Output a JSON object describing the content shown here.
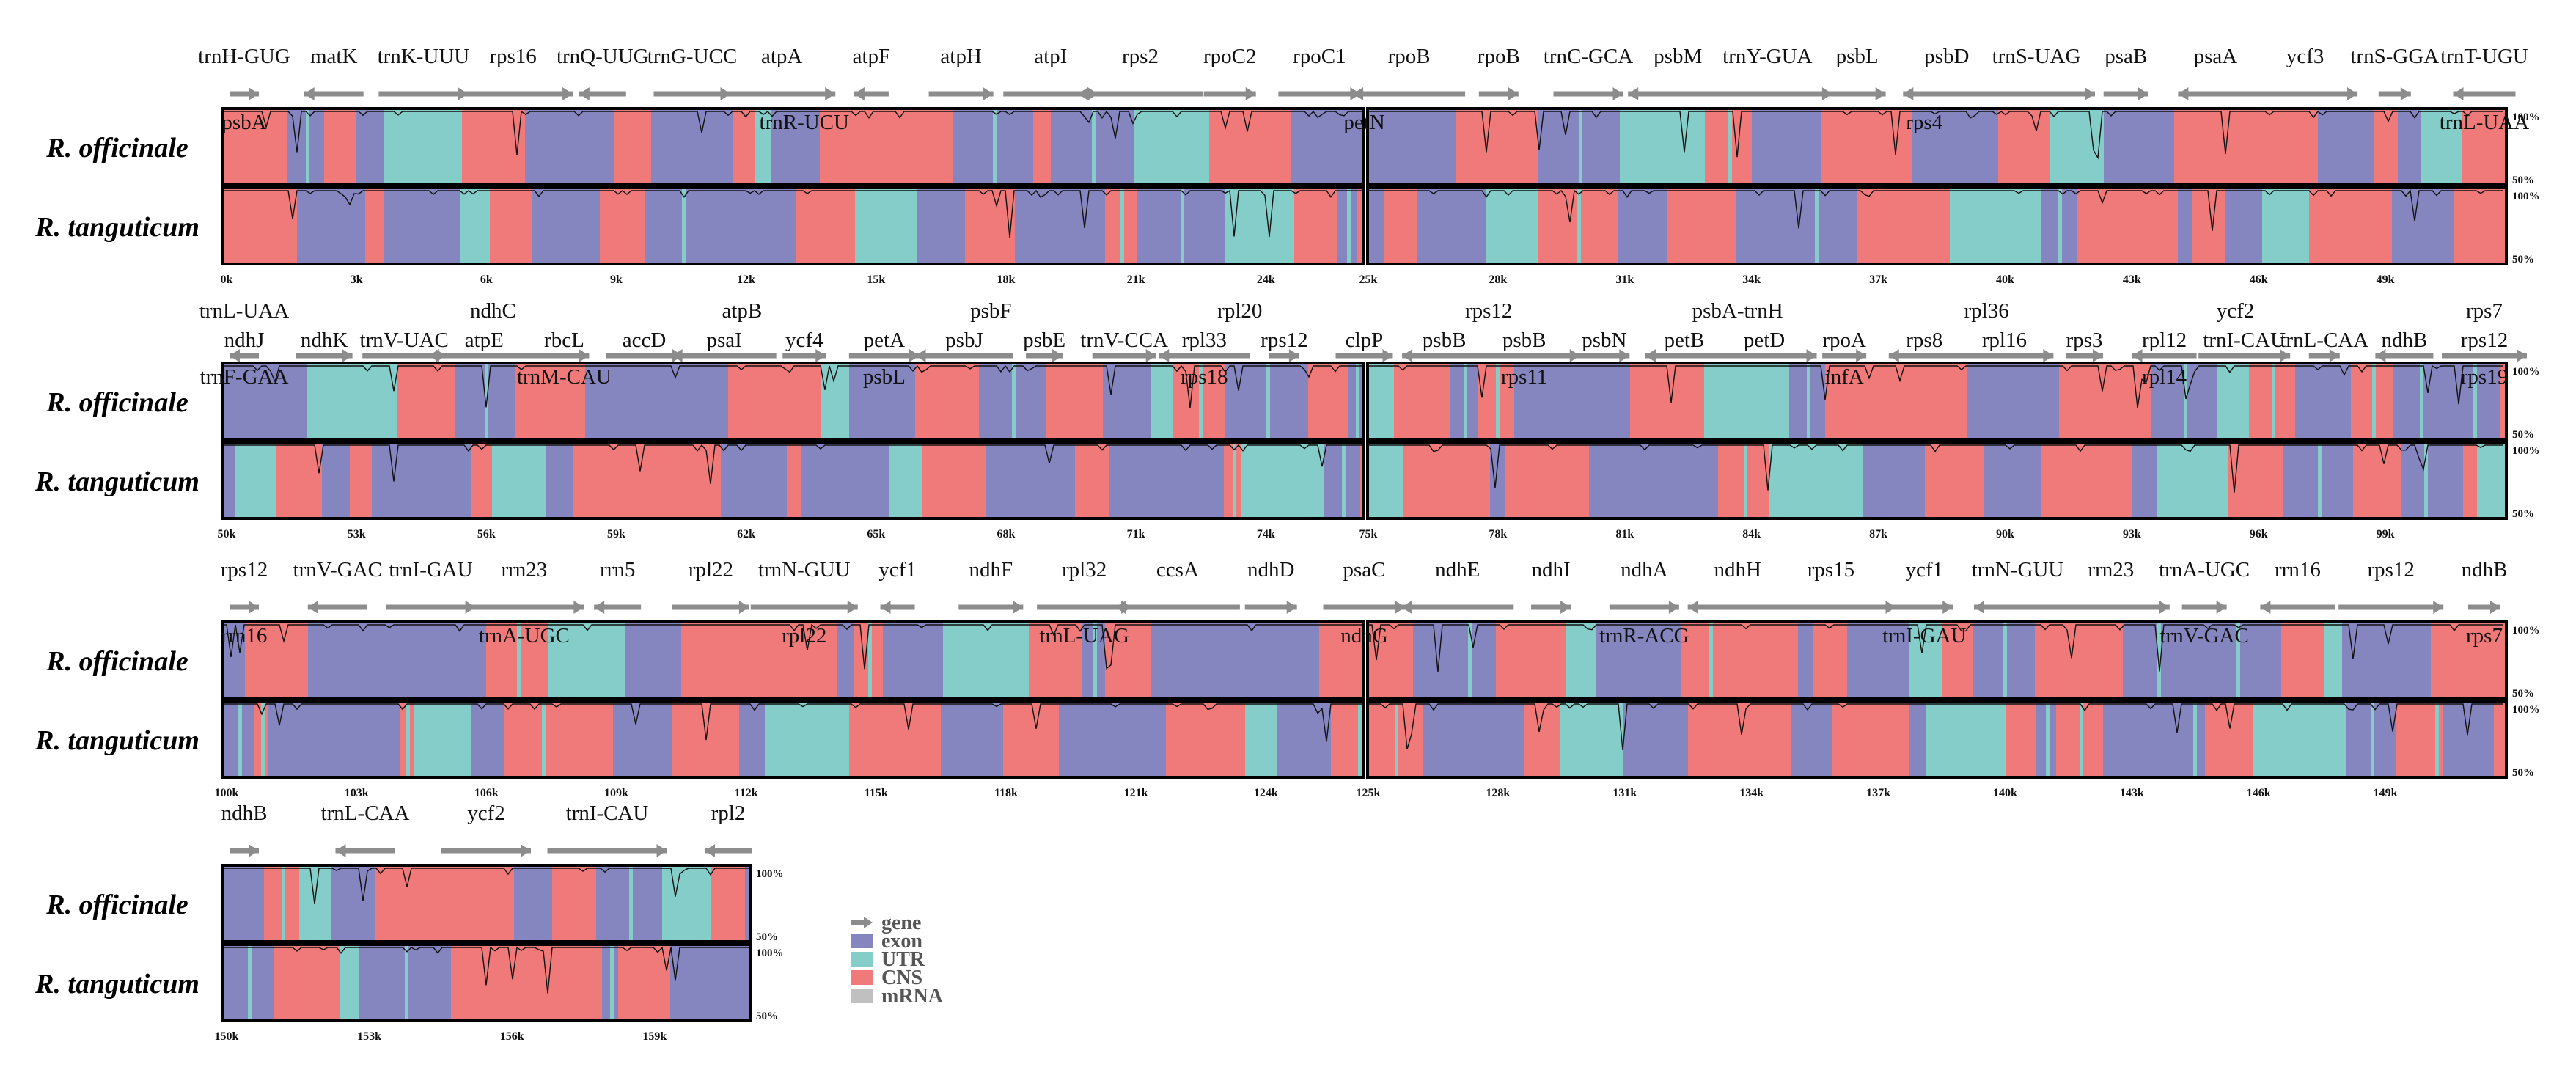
{
  "colors": {
    "exon": "#8585c0",
    "utr": "#85cdc8",
    "cns": "#f07a7a",
    "mrna": "#c0c0c0",
    "gene_arrow": "#8c8c8c",
    "frame": "#000000"
  },
  "species": [
    "R. officinale",
    "R. tanguticum"
  ],
  "percent_labels": [
    "100%",
    "50%"
  ],
  "legend": [
    {
      "key": "gene",
      "label": "gene",
      "kind": "arrow"
    },
    {
      "key": "exon",
      "label": "exon",
      "kind": "box"
    },
    {
      "key": "utr",
      "label": "UTR",
      "kind": "box"
    },
    {
      "key": "cns",
      "label": "CNS",
      "kind": "box"
    },
    {
      "key": "mrna",
      "label": "mRNA",
      "kind": "box"
    }
  ],
  "rows": [
    {
      "id": "row1",
      "ticks": [
        "0k",
        "3k",
        "6k",
        "9k",
        "12k",
        "15k",
        "18k",
        "21k",
        "24k",
        "25k",
        "28k",
        "31k",
        "34k",
        "37k",
        "40k",
        "43k",
        "46k",
        "49k"
      ],
      "genes_top": [
        "trnH-GUG",
        "matK",
        "trnK-UUU",
        "rps16",
        "trnQ-UUG",
        "trnG-UCC",
        "atpA",
        "atpF",
        "atpH",
        "atpI",
        "rps2",
        "rpoC2",
        "rpoC1",
        "rpoB",
        "rpoB",
        "trnC-GCA",
        "psbM",
        "trnY-GUA",
        "psbL",
        "psbD",
        "trnS-UAG",
        "psaB",
        "psaA",
        "ycf3",
        "trnS-GGA",
        "trnT-UGU"
      ],
      "genes_bottom": [
        "psbA",
        "trnR-UCU",
        "petN",
        "rps4",
        "trnL-UAA"
      ]
    },
    {
      "id": "row2",
      "ticks": [
        "50k",
        "53k",
        "56k",
        "59k",
        "62k",
        "65k",
        "68k",
        "71k",
        "74k",
        "75k",
        "78k",
        "81k",
        "84k",
        "87k",
        "90k",
        "93k",
        "96k",
        "99k"
      ],
      "genes_top": [
        "trnL-UAA",
        "ndhC",
        "atpB",
        "psbF",
        "rpl20",
        "rps12",
        "psbA-trnH",
        "rpl36",
        "ycf2",
        "rps7"
      ],
      "genes_mid": [
        "ndhJ",
        "ndhK",
        "trnV-UAC",
        "atpE",
        "rbcL",
        "accD",
        "psaI",
        "ycf4",
        "petA",
        "psbJ",
        "psbE",
        "trnV-CCA",
        "rpl33",
        "rps12",
        "clpP",
        "psbB",
        "psbB",
        "psbN",
        "petB",
        "petD",
        "rpoA",
        "rps8",
        "rpl16",
        "rps3",
        "rpl12",
        "trnI-CAU",
        "trnL-CAA",
        "ndhB",
        "rps12"
      ],
      "genes_bottom": [
        "trnF-GAA",
        "trnM-CAU",
        "psbL",
        "rps18",
        "rps11",
        "infA",
        "rpl14",
        "rps19"
      ]
    },
    {
      "id": "row3",
      "ticks": [
        "100k",
        "103k",
        "106k",
        "109k",
        "112k",
        "115k",
        "118k",
        "121k",
        "124k",
        "125k",
        "128k",
        "131k",
        "134k",
        "137k",
        "140k",
        "143k",
        "146k",
        "149k"
      ],
      "genes_top": [
        "rps12",
        "trnV-GAC",
        "trnI-GAU",
        "rrn23",
        "rrn5",
        "rpl22",
        "trnN-GUU",
        "ycf1",
        "ndhF",
        "rpl32",
        "ccsA",
        "ndhD",
        "psaC",
        "ndhE",
        "ndhI",
        "ndhA",
        "ndhH",
        "rps15",
        "ycf1",
        "trnN-GUU",
        "rrn23",
        "trnA-UGC",
        "rrn16",
        "rps12",
        "ndhB"
      ],
      "genes_bottom": [
        "rrn16",
        "trnA-UGC",
        "rpl22",
        "trnL-UAG",
        "ndhG",
        "trnR-ACG",
        "trnI-GAU",
        "trnV-GAC",
        "rps7"
      ]
    },
    {
      "id": "row4",
      "ticks": [
        "150k",
        "153k",
        "156k",
        "159k"
      ],
      "genes_top": [
        "ndhB",
        "trnL-CAA",
        "ycf2",
        "trnI-CAU",
        "rpl2"
      ],
      "genes_bottom": []
    }
  ]
}
